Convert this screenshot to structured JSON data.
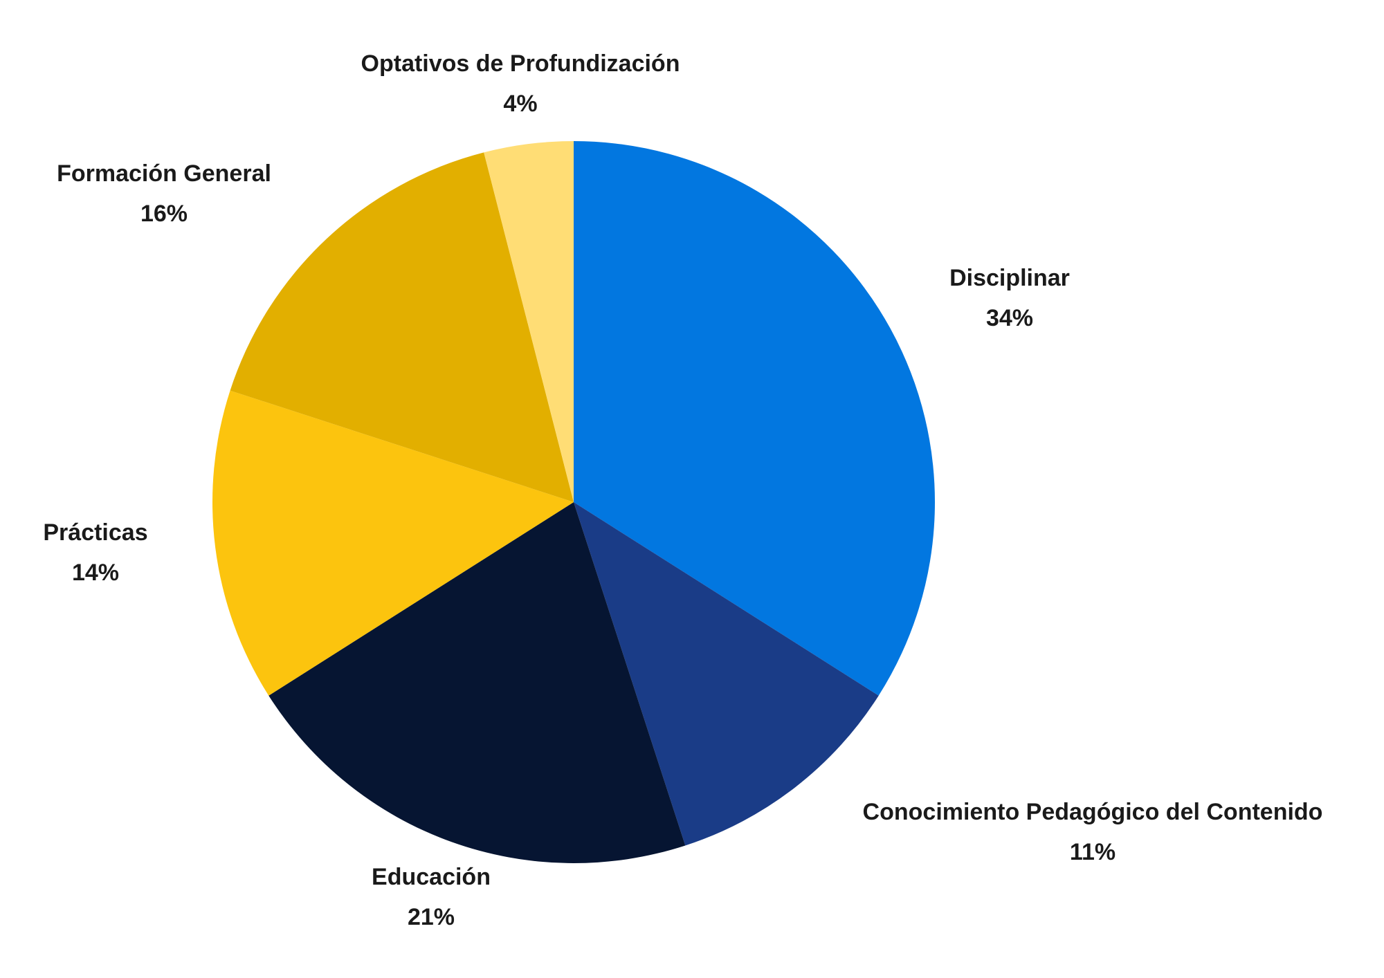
{
  "chart_data": {
    "type": "pie",
    "categories": [
      "Disciplinar",
      "Conocimiento Pedagógico del Contenido",
      "Educación",
      "Prácticas",
      "Formación General",
      "Optativos de Profundización"
    ],
    "values": [
      34,
      11,
      21,
      14,
      16,
      4
    ],
    "value_labels": [
      "34%",
      "11%",
      "21%",
      "14%",
      "16%",
      "4%"
    ],
    "colors": [
      "#0277e0",
      "#1a3c87",
      "#061532",
      "#fcc40e",
      "#e2af00",
      "#ffdd75"
    ]
  }
}
